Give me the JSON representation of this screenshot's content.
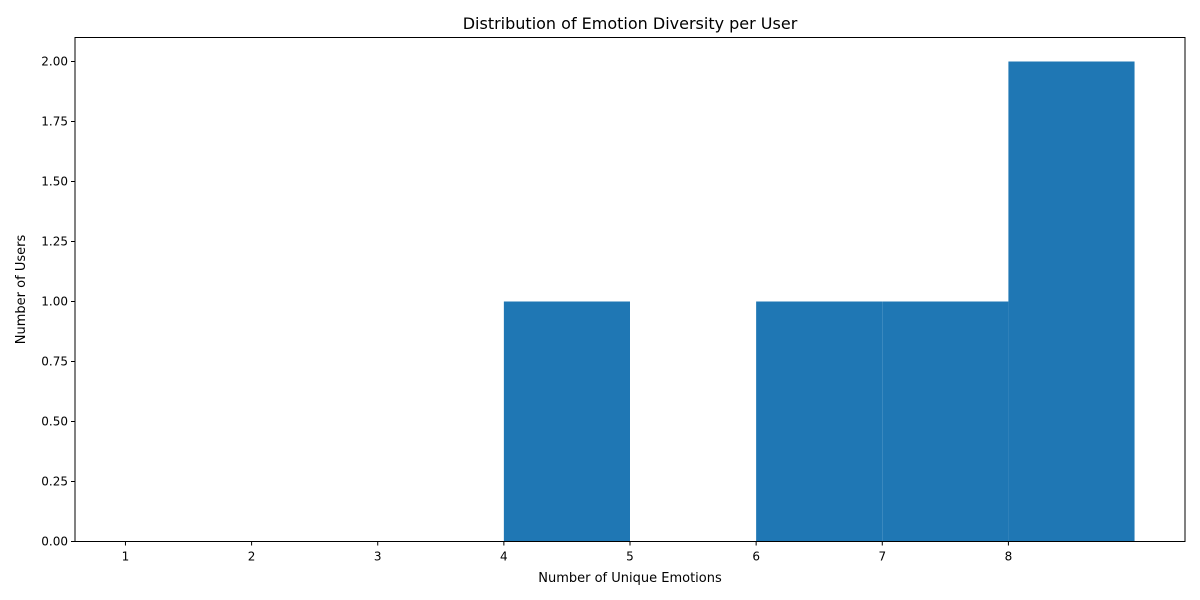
{
  "chart_data": {
    "type": "bar",
    "title": "Distribution of Emotion Diversity per User",
    "xlabel": "Number of Unique Emotions",
    "ylabel": "Number of Users",
    "bins": [
      {
        "start": 4,
        "end": 5,
        "count": 1
      },
      {
        "start": 6,
        "end": 7,
        "count": 1
      },
      {
        "start": 7,
        "end": 8,
        "count": 1
      },
      {
        "start": 8,
        "end": 9,
        "count": 2
      }
    ],
    "x_ticks": [
      "1",
      "2",
      "3",
      "4",
      "5",
      "6",
      "7",
      "8"
    ],
    "y_ticks": [
      "0.00",
      "0.25",
      "0.50",
      "0.75",
      "1.00",
      "1.25",
      "1.50",
      "1.75",
      "2.00"
    ],
    "xlim": [
      0.6,
      9.4
    ],
    "ylim": [
      0,
      2.1
    ],
    "bar_color": "#1f77b4",
    "grid": false,
    "legend": "none"
  }
}
